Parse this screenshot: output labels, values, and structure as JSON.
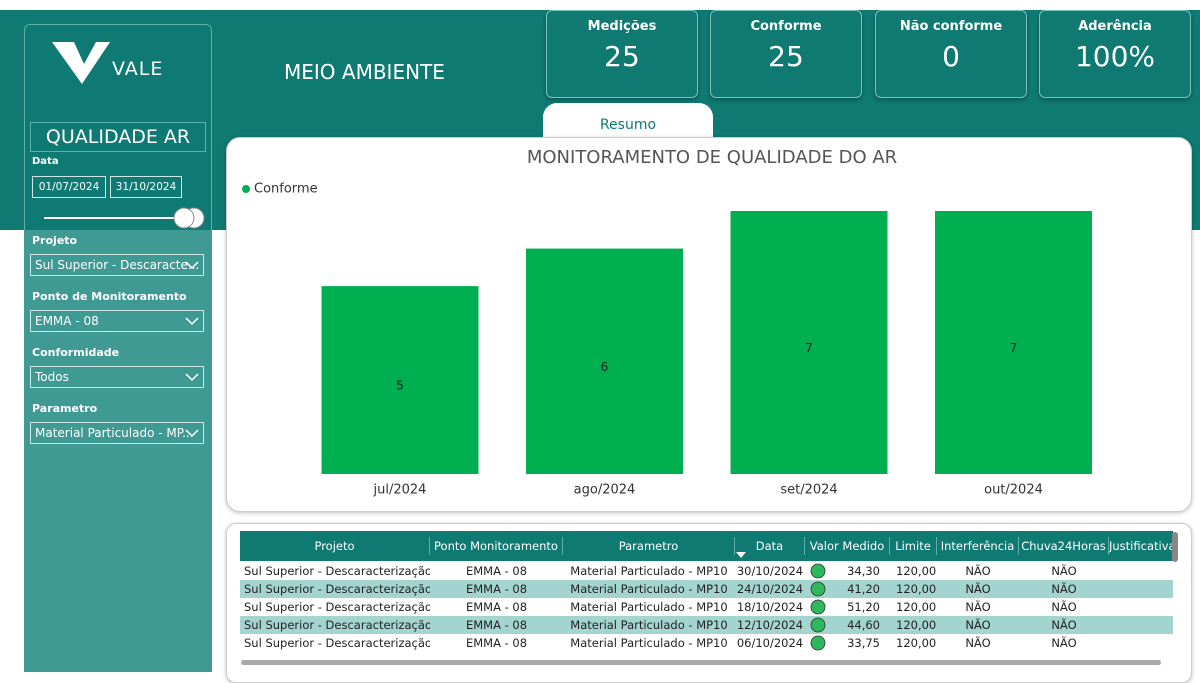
{
  "sidebar": {
    "brand": "VALE",
    "page_title": "QUALIDADE AR",
    "date_label": "Data",
    "date_from": "01/07/2024",
    "date_to": "31/10/2024",
    "filters": [
      {
        "label": "Projeto",
        "value": "Sul Superior - Descaracte..."
      },
      {
        "label": "Ponto de Monitoramento",
        "value": "EMMA - 08"
      },
      {
        "label": "Conformidade",
        "value": "Todos"
      },
      {
        "label": "Parametro",
        "value": "Material Particulado - MP..."
      }
    ]
  },
  "header": {
    "title": "MEIO AMBIENTE"
  },
  "kpis": [
    {
      "label": "Medições",
      "value": "25"
    },
    {
      "label": "Conforme",
      "value": "25"
    },
    {
      "label": "Não conforme",
      "value": "0"
    },
    {
      "label": "Aderência",
      "value": "100%"
    }
  ],
  "tab": "Resumo",
  "chart": {
    "type": "bar",
    "title": "MONITORAMENTO DE QUALIDADE DO AR",
    "categories": [
      "jul/2024",
      "ago/2024",
      "set/2024",
      "out/2024"
    ],
    "series": [
      {
        "name": "Conforme",
        "color": "#00b050",
        "values": [
          5,
          6,
          7,
          7
        ]
      }
    ]
  },
  "table": {
    "columns": [
      "Projeto",
      "Ponto Monitoramento",
      "Parametro",
      "Data",
      "Valor Medido",
      "Limite",
      "Interferência",
      "Chuva24Horas",
      "Justificativa"
    ],
    "rows": [
      [
        "Sul Superior - Descaracterização",
        "EMMA - 08",
        "Material Particulado - MP10",
        "30/10/2024",
        "34,30",
        "120,00",
        "NÃO",
        "NÃO",
        ""
      ],
      [
        "Sul Superior - Descaracterização",
        "EMMA - 08",
        "Material Particulado - MP10",
        "24/10/2024",
        "41,20",
        "120,00",
        "NÃO",
        "NÃO",
        ""
      ],
      [
        "Sul Superior - Descaracterização",
        "EMMA - 08",
        "Material Particulado - MP10",
        "18/10/2024",
        "51,20",
        "120,00",
        "NÃO",
        "NÃO",
        ""
      ],
      [
        "Sul Superior - Descaracterização",
        "EMMA - 08",
        "Material Particulado - MP10",
        "12/10/2024",
        "44,60",
        "120,00",
        "NÃO",
        "NÃO",
        ""
      ],
      [
        "Sul Superior - Descaracterização",
        "EMMA - 08",
        "Material Particulado - MP10",
        "06/10/2024",
        "33,75",
        "120,00",
        "NÃO",
        "NÃO",
        ""
      ]
    ]
  }
}
